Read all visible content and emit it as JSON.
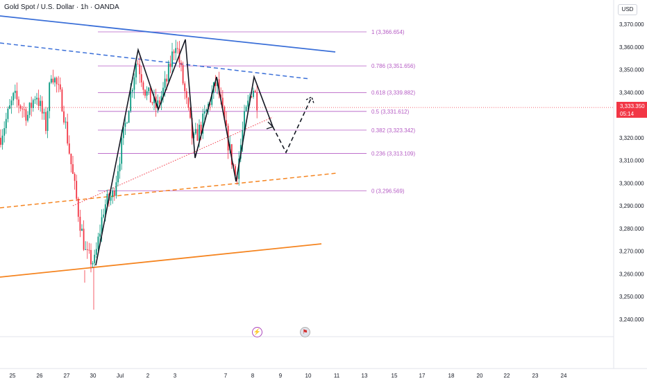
{
  "header": {
    "title": "Gold Spot / U.S. Dollar · 1h · OANDA",
    "currency": "USD"
  },
  "price_axis": {
    "labels": [
      "3,370.000",
      "3,360.000",
      "3,350.000",
      "3,340.000",
      "3,320.000",
      "3,310.000",
      "3,300.000",
      "3,290.000",
      "3,280.000",
      "3,270.000",
      "3,260.000",
      "3,250.000",
      "3,240.000"
    ],
    "values": [
      3370,
      3360,
      3350,
      3340,
      3320,
      3310,
      3300,
      3290,
      3280,
      3270,
      3260,
      3250,
      3240
    ]
  },
  "time_axis": {
    "labels": [
      "25",
      "26",
      "27",
      "30",
      "Jul",
      "2",
      "3",
      "7",
      "8",
      "9",
      "10",
      "11",
      "13",
      "15",
      "17",
      "18",
      "20",
      "22",
      "23",
      "24"
    ]
  },
  "current_price": {
    "price": "3,333.350",
    "countdown": "05:14",
    "value": 3333.35
  },
  "fibonacci": [
    {
      "label": "1 (3,366.654)",
      "value": 3366.654
    },
    {
      "label": "0.786 (3,351.656)",
      "value": 3351.656
    },
    {
      "label": "0.618 (3,339.882)",
      "value": 3339.882
    },
    {
      "label": "0.5 (3,331.612)",
      "value": 3331.612
    },
    {
      "label": "0.382 (3,323.342)",
      "value": 3323.342
    },
    {
      "label": "0.236 (3,313.109)",
      "value": 3313.109
    },
    {
      "label": "0 (3,296.569)",
      "value": 3296.569
    }
  ],
  "colors": {
    "up": "#089981",
    "down": "#f23645",
    "fib": "#b55bc4",
    "blue_trend": "#3a6fd8",
    "orange_trend": "#f5841f",
    "pattern": "#131722",
    "grid": "#f0f3fa"
  },
  "events": {
    "flash_icon": "lightning-icon",
    "flag_icon": "us-flag-icon"
  }
}
